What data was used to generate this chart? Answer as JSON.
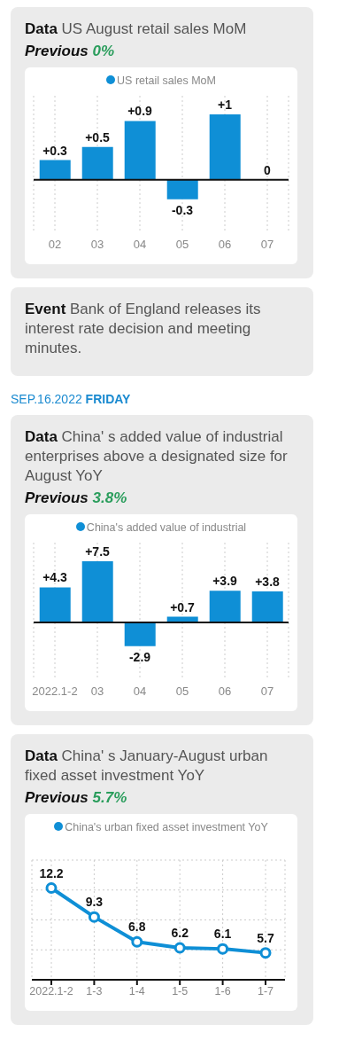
{
  "chart_data": [
    {
      "type": "bar",
      "title": "Data US August retail sales MoM",
      "subtitle": "Previous 0%",
      "categories": [
        "02",
        "03",
        "04",
        "05",
        "06",
        "07"
      ],
      "series": [
        {
          "name": "US retail sales MoM",
          "color": "#0f8fd6",
          "values": [
            0.3,
            0.5,
            0.9,
            -0.3,
            1,
            0
          ],
          "value_labels": [
            "+0.3",
            "+0.5",
            "+0.9",
            "-0.3",
            "+1",
            "0"
          ]
        }
      ],
      "grid": "x",
      "legend": "top"
    },
    {
      "type": "other",
      "title": "Event Bank of England releases its interest rate decision and meeting minutes.",
      "annotations": [
        "SEP.16.2022 FRIDAY"
      ]
    },
    {
      "type": "bar",
      "title": "Data China' s added value of industrial enterprises above a designated size for August YoY",
      "subtitle": "Previous 3.8%",
      "categories": [
        "2022.1-2",
        "03",
        "04",
        "05",
        "06",
        "07"
      ],
      "series": [
        {
          "name": "China's added value of industrial",
          "color": "#0f8fd6",
          "values": [
            4.3,
            7.5,
            -2.9,
            0.7,
            3.9,
            3.8
          ],
          "value_labels": [
            "+4.3",
            "+7.5",
            "-2.9",
            "+0.7",
            "+3.9",
            "+3.8"
          ]
        }
      ],
      "grid": "x",
      "legend": "top"
    },
    {
      "type": "line",
      "title": "Data China' s January-August urban fixed asset investment YoY",
      "subtitle": "Previous 5.7%",
      "categories": [
        "2022.1-2",
        "1-3",
        "1-4",
        "1-5",
        "1-6",
        "1-7"
      ],
      "series": [
        {
          "name": "China's urban fixed asset investment YoY",
          "color": "#0f8fd6",
          "values": [
            12.2,
            9.3,
            6.8,
            6.2,
            6.1,
            5.7
          ]
        }
      ],
      "ylim": [
        3,
        15
      ],
      "yticks": [
        {
          "value": 3,
          "label": null
        },
        {
          "value": 6,
          "label": null
        },
        {
          "value": 9,
          "label": null
        },
        {
          "value": 12,
          "label": null
        },
        {
          "value": 15,
          "label": null
        }
      ],
      "tick_labels": "x",
      "grid": true,
      "legend": "top",
      "marker": "circle",
      "data_labels": true
    }
  ]
}
